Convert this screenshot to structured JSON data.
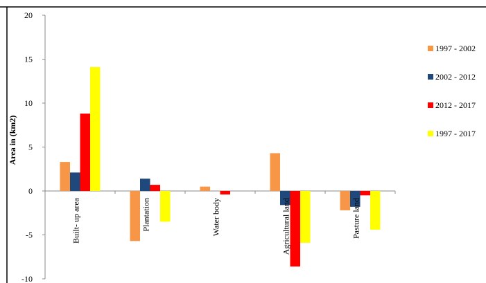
{
  "chart_data": {
    "type": "bar",
    "title": "",
    "xlabel": "",
    "ylabel": "Area in (km2)",
    "ylim": [
      -10,
      20
    ],
    "yticks": [
      -10,
      -5,
      0,
      5,
      10,
      15,
      20
    ],
    "grid": false,
    "legend_position": "right",
    "categories": [
      "Built- up area",
      "Plantation",
      "Water body",
      "Agricultural land",
      "Pasture land"
    ],
    "series": [
      {
        "name": "1997 - 2002",
        "color": "#F79646",
        "values": [
          3.3,
          -5.7,
          0.5,
          4.3,
          -2.2
        ]
      },
      {
        "name": "2002 - 2012",
        "color": "#1F497D",
        "values": [
          2.1,
          1.4,
          0.0,
          -1.6,
          -1.8
        ]
      },
      {
        "name": "2012 - 2017",
        "color": "#FF0000",
        "values": [
          8.8,
          0.7,
          -0.4,
          -8.6,
          -0.5
        ]
      },
      {
        "name": "1997 - 2017",
        "color": "#FFFF00",
        "values": [
          14.1,
          -3.5,
          0.0,
          -5.9,
          -4.4
        ]
      }
    ]
  }
}
